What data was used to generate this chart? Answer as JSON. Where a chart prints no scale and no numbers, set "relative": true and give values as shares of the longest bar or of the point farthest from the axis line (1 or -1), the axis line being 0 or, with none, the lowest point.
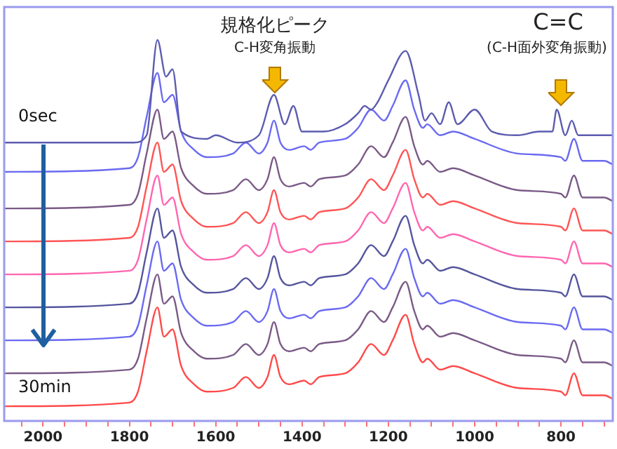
{
  "chart_data": {
    "type": "line",
    "relative": true,
    "marker": "none",
    "legend": false,
    "grid": false,
    "xlim": [
      2090,
      680
    ],
    "xticks": [
      {
        "value": 2050,
        "label": null
      },
      2000,
      {
        "value": 1950,
        "label": null
      },
      {
        "value": 1900,
        "label": null
      },
      {
        "value": 1850,
        "label": null
      },
      1800,
      {
        "value": 1750,
        "label": null
      },
      {
        "value": 1700,
        "label": null
      },
      {
        "value": 1650,
        "label": null
      },
      1600,
      {
        "value": 1550,
        "label": null
      },
      {
        "value": 1500,
        "label": null
      },
      {
        "value": 1450,
        "label": null
      },
      1400,
      {
        "value": 1350,
        "label": null
      },
      {
        "value": 1300,
        "label": null
      },
      {
        "value": 1250,
        "label": null
      },
      1200,
      {
        "value": 1150,
        "label": null
      },
      {
        "value": 1100,
        "label": null
      },
      {
        "value": 1050,
        "label": null
      },
      1000,
      {
        "value": 950,
        "label": null
      },
      {
        "value": 900,
        "label": null
      },
      {
        "value": 850,
        "label": null
      },
      800,
      {
        "value": 750,
        "label": null
      },
      {
        "value": 700,
        "label": null
      }
    ],
    "annotations": [
      "規格化ピーク",
      "C-H変角振動",
      "C=C",
      "(C-H面外変角振動)"
    ],
    "x": [
      2090,
      1800,
      1780,
      1760,
      1735,
      1720,
      1700,
      1680,
      1650,
      1620,
      1560,
      1530,
      1500,
      1480,
      1465,
      1450,
      1430,
      1395,
      1380,
      1360,
      1300,
      1270,
      1240,
      1210,
      1190,
      1160,
      1140,
      1120,
      1110,
      1080,
      1050,
      1000,
      900,
      800,
      790,
      770,
      750,
      720,
      700,
      680
    ],
    "series": [
      {
        "name": "0sec",
        "color": "#5c5cb0",
        "x": [
          2090,
          1790,
          1760,
          1735,
          1715,
          1700,
          1680,
          1620,
          1600,
          1550,
          1500,
          1465,
          1440,
          1420,
          1400,
          1350,
          1300,
          1270,
          1255,
          1240,
          1225,
          1200,
          1160,
          1130,
          1115,
          1100,
          1080,
          1060,
          1040,
          1000,
          960,
          900,
          850,
          820,
          810,
          790,
          775,
          760,
          720,
          680
        ],
        "values": [
          0.72,
          0.72,
          0.74,
          1,
          0.9,
          0.92,
          0.75,
          0.73,
          0.74,
          0.72,
          0.74,
          0.85,
          0.77,
          0.82,
          0.75,
          0.75,
          0.77,
          0.8,
          0.82,
          0.81,
          0.83,
          0.89,
          0.97,
          0.85,
          0.78,
          0.8,
          0.77,
          0.83,
          0.77,
          0.81,
          0.75,
          0.74,
          0.75,
          0.75,
          0.81,
          0.74,
          0.78,
          0.74,
          0.74,
          0.74
        ]
      },
      {
        "color": "#6a6af2",
        "values": [
          0.64,
          0.65,
          0.68,
          0.79,
          0.91,
          0.83,
          0.85,
          0.75,
          0.7,
          0.68,
          0.69,
          0.72,
          0.69,
          0.72,
          0.78,
          0.72,
          0.7,
          0.71,
          0.7,
          0.72,
          0.73,
          0.76,
          0.81,
          0.78,
          0.82,
          0.89,
          0.81,
          0.76,
          0.77,
          0.74,
          0.75,
          0.73,
          0.69,
          0.68,
          0.67,
          0.73,
          0.67,
          0.67,
          0.67,
          0.66
        ]
      },
      {
        "color": "#7a5a86",
        "values": [
          0.54,
          0.55,
          0.58,
          0.69,
          0.81,
          0.73,
          0.75,
          0.65,
          0.6,
          0.58,
          0.59,
          0.62,
          0.59,
          0.62,
          0.68,
          0.62,
          0.6,
          0.61,
          0.6,
          0.62,
          0.63,
          0.66,
          0.71,
          0.68,
          0.72,
          0.79,
          0.71,
          0.66,
          0.67,
          0.64,
          0.65,
          0.63,
          0.59,
          0.58,
          0.57,
          0.63,
          0.57,
          0.57,
          0.57,
          0.56
        ]
      },
      {
        "color": "#ff5555",
        "values": [
          0.45,
          0.46,
          0.49,
          0.6,
          0.72,
          0.64,
          0.66,
          0.56,
          0.51,
          0.49,
          0.5,
          0.53,
          0.5,
          0.53,
          0.59,
          0.53,
          0.51,
          0.52,
          0.51,
          0.53,
          0.54,
          0.57,
          0.62,
          0.59,
          0.63,
          0.7,
          0.62,
          0.57,
          0.58,
          0.55,
          0.56,
          0.54,
          0.5,
          0.49,
          0.48,
          0.54,
          0.48,
          0.48,
          0.48,
          0.47
        ]
      },
      {
        "color": "#ff66b0",
        "values": [
          0.36,
          0.37,
          0.4,
          0.51,
          0.63,
          0.55,
          0.57,
          0.47,
          0.42,
          0.4,
          0.41,
          0.44,
          0.41,
          0.44,
          0.5,
          0.44,
          0.42,
          0.43,
          0.42,
          0.44,
          0.45,
          0.48,
          0.53,
          0.5,
          0.54,
          0.61,
          0.53,
          0.48,
          0.49,
          0.46,
          0.47,
          0.45,
          0.41,
          0.4,
          0.39,
          0.45,
          0.39,
          0.39,
          0.39,
          0.38
        ]
      },
      {
        "color": "#55559e",
        "values": [
          0.27,
          0.28,
          0.31,
          0.42,
          0.54,
          0.46,
          0.48,
          0.38,
          0.33,
          0.31,
          0.32,
          0.35,
          0.32,
          0.35,
          0.41,
          0.35,
          0.33,
          0.34,
          0.33,
          0.35,
          0.36,
          0.39,
          0.44,
          0.41,
          0.45,
          0.52,
          0.44,
          0.39,
          0.4,
          0.37,
          0.38,
          0.36,
          0.32,
          0.31,
          0.3,
          0.36,
          0.3,
          0.3,
          0.3,
          0.29
        ]
      },
      {
        "color": "#6a6af2",
        "values": [
          0.18,
          0.19,
          0.22,
          0.33,
          0.45,
          0.37,
          0.39,
          0.29,
          0.24,
          0.22,
          0.23,
          0.26,
          0.23,
          0.26,
          0.32,
          0.26,
          0.24,
          0.25,
          0.24,
          0.26,
          0.27,
          0.3,
          0.35,
          0.32,
          0.36,
          0.43,
          0.35,
          0.3,
          0.31,
          0.28,
          0.29,
          0.27,
          0.23,
          0.22,
          0.21,
          0.27,
          0.21,
          0.21,
          0.21,
          0.2
        ]
      },
      {
        "color": "#7a5a86",
        "values": [
          0.09,
          0.1,
          0.13,
          0.24,
          0.36,
          0.28,
          0.3,
          0.2,
          0.15,
          0.13,
          0.14,
          0.17,
          0.14,
          0.17,
          0.23,
          0.17,
          0.15,
          0.16,
          0.15,
          0.17,
          0.18,
          0.21,
          0.26,
          0.23,
          0.27,
          0.34,
          0.26,
          0.21,
          0.22,
          0.19,
          0.2,
          0.18,
          0.14,
          0.13,
          0.12,
          0.18,
          0.12,
          0.12,
          0.12,
          0.11
        ]
      },
      {
        "name": "30min",
        "color": "#ff4a4a",
        "values": [
          0,
          0.01,
          0.04,
          0.15,
          0.27,
          0.19,
          0.21,
          0.11,
          0.06,
          0.04,
          0.05,
          0.08,
          0.05,
          0.08,
          0.14,
          0.08,
          0.06,
          0.07,
          0.06,
          0.08,
          0.09,
          0.12,
          0.17,
          0.14,
          0.18,
          0.25,
          0.17,
          0.12,
          0.13,
          0.1,
          0.11,
          0.09,
          0.05,
          0.04,
          0.03,
          0.09,
          0.03,
          0.03,
          0.03,
          0.02
        ]
      }
    ]
  }
}
